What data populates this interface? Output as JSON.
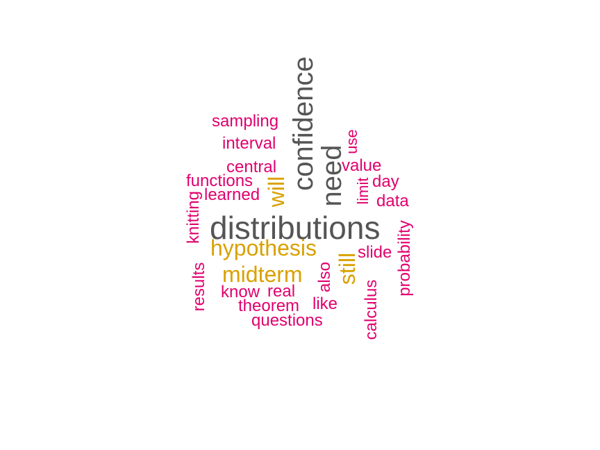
{
  "colors": {
    "gray": "#555555",
    "gold": "#d9a100",
    "magenta": "#e0006e"
  },
  "words": {
    "distributions": {
      "text": "distributions",
      "color": "gray"
    },
    "confidence": {
      "text": "confidence",
      "color": "gray"
    },
    "need": {
      "text": "need",
      "color": "gray"
    },
    "hypothesis": {
      "text": "hypothesis",
      "color": "gold"
    },
    "midterm": {
      "text": "midterm",
      "color": "gold"
    },
    "will": {
      "text": "will",
      "color": "gold"
    },
    "still": {
      "text": "still",
      "color": "gold"
    },
    "sampling": {
      "text": "sampling",
      "color": "magenta"
    },
    "interval": {
      "text": "interval",
      "color": "magenta"
    },
    "central": {
      "text": "central",
      "color": "magenta"
    },
    "functions": {
      "text": "functions",
      "color": "magenta"
    },
    "learned": {
      "text": "learned",
      "color": "magenta"
    },
    "knitting": {
      "text": "knitting",
      "color": "magenta"
    },
    "results": {
      "text": "results",
      "color": "magenta"
    },
    "know": {
      "text": "know",
      "color": "magenta"
    },
    "real": {
      "text": "real",
      "color": "magenta"
    },
    "theorem": {
      "text": "theorem",
      "color": "magenta"
    },
    "questions": {
      "text": "questions",
      "color": "magenta"
    },
    "also": {
      "text": "also",
      "color": "magenta"
    },
    "like": {
      "text": "like",
      "color": "magenta"
    },
    "use": {
      "text": "use",
      "color": "magenta"
    },
    "value": {
      "text": "value",
      "color": "magenta"
    },
    "limit": {
      "text": "limit",
      "color": "magenta"
    },
    "day": {
      "text": "day",
      "color": "magenta"
    },
    "data": {
      "text": "data",
      "color": "magenta"
    },
    "slide": {
      "text": "slide",
      "color": "magenta"
    },
    "probability": {
      "text": "probability",
      "color": "magenta"
    },
    "calculus": {
      "text": "calculus",
      "color": "magenta"
    }
  }
}
